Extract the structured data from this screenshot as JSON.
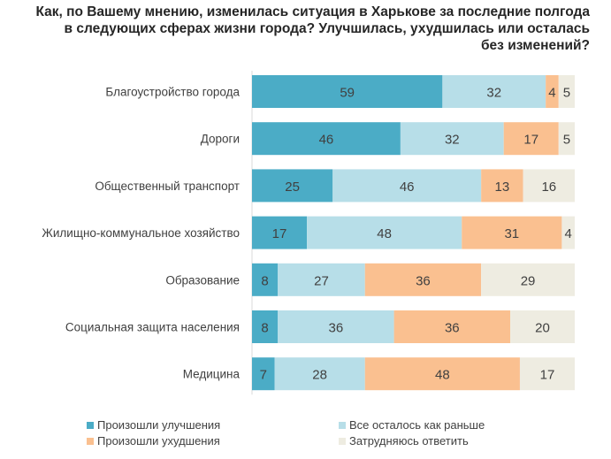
{
  "title_lines": [
    "Как, по Вашему мнению, изменилась ситуация в Харькове за последние полгода",
    "в следующих сферах жизни города? Улучшилась, ухудшилась или осталась",
    "без изменений?"
  ],
  "colors": {
    "improved": "#4BACC6",
    "same": "#B7DEE8",
    "worse": "#FAC090",
    "unsure": "#EEECE1"
  },
  "chart_data": {
    "type": "bar",
    "orientation": "horizontal",
    "stacked": true,
    "xlim": [
      0,
      100
    ],
    "categories": [
      "Благоустройство города",
      "Дороги",
      "Общественный транспорт",
      "Жилищно-коммунальное хозяйство",
      "Образование",
      "Социальная защита населения",
      "Медицина"
    ],
    "series": [
      {
        "name": "Произошли улучшения",
        "color_key": "improved",
        "values": [
          59,
          46,
          25,
          17,
          8,
          8,
          7
        ]
      },
      {
        "name": "Все осталось как раньше",
        "color_key": "same",
        "values": [
          32,
          32,
          46,
          48,
          27,
          36,
          28
        ]
      },
      {
        "name": "Произошли ухудшения",
        "color_key": "worse",
        "values": [
          4,
          17,
          13,
          31,
          36,
          36,
          48
        ]
      },
      {
        "name": "Затрудняюсь ответить",
        "color_key": "unsure",
        "values": [
          5,
          5,
          16,
          4,
          29,
          20,
          17
        ]
      }
    ],
    "legend_position": "bottom",
    "grid": false
  }
}
